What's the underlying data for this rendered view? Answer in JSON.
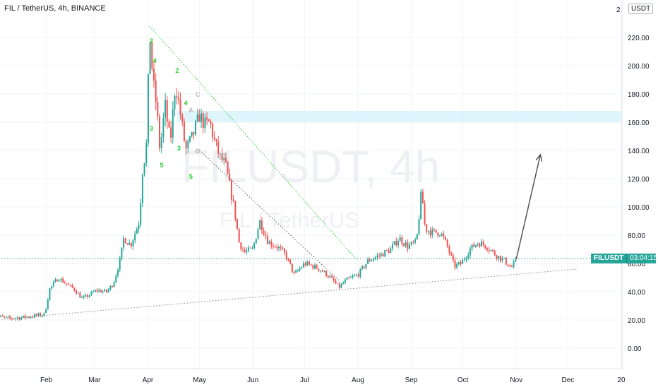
{
  "header": {
    "title": "FIL / TetherUS, 4h, BINANCE",
    "currency_badge": "USDT",
    "top_axis_label": "2"
  },
  "watermark": {
    "main": "FILUSDT, 4h",
    "sub": "FIL / TetherUS"
  },
  "price_tag": {
    "symbol": "FILUSDT",
    "countdown": "03:04:15",
    "value": 63.5,
    "color": "#26a69a"
  },
  "chart_data": {
    "type": "candlestick",
    "title": "FIL / TetherUS, 4h, BINANCE",
    "y_ticks": [
      "220.00",
      "200.00",
      "180.00",
      "160.00",
      "140.00",
      "120.00",
      "100.00",
      "80.00",
      "60.00",
      "40.00",
      "20.00",
      "0.00"
    ],
    "y_tick_values": [
      220,
      200,
      180,
      160,
      140,
      120,
      100,
      80,
      60,
      40,
      20,
      0
    ],
    "ylim": [
      -15,
      235
    ],
    "x_ticks": [
      "Feb",
      "Mar",
      "Apr",
      "May",
      "Jun",
      "Jul",
      "Aug",
      "Sep",
      "Oct",
      "Nov",
      "Dec",
      "20"
    ],
    "x_tick_dates": [
      "2021-02-01",
      "2021-03-01",
      "2021-04-01",
      "2021-05-01",
      "2021-06-01",
      "2021-07-01",
      "2021-08-01",
      "2021-09-01",
      "2021-10-01",
      "2021-11-01",
      "2021-12-01",
      "2022-01-01"
    ],
    "xlim": [
      "2021-01-01",
      "2022-01-01"
    ],
    "price_path": [
      [
        "2021-01-01",
        23
      ],
      [
        "2021-01-10",
        21
      ],
      [
        "2021-01-20",
        22
      ],
      [
        "2021-01-31",
        24
      ],
      [
        "2021-02-03",
        42
      ],
      [
        "2021-02-08",
        50
      ],
      [
        "2021-02-12",
        46
      ],
      [
        "2021-02-17",
        42
      ],
      [
        "2021-02-22",
        35
      ],
      [
        "2021-02-25",
        37
      ],
      [
        "2021-03-02",
        41
      ],
      [
        "2021-03-08",
        40
      ],
      [
        "2021-03-12",
        46
      ],
      [
        "2021-03-16",
        63
      ],
      [
        "2021-03-18",
        78
      ],
      [
        "2021-03-22",
        73
      ],
      [
        "2021-03-27",
        90
      ],
      [
        "2021-03-29",
        128
      ],
      [
        "2021-03-31",
        140
      ],
      [
        "2021-04-01",
        178
      ],
      [
        "2021-04-02",
        225
      ],
      [
        "2021-04-04",
        188
      ],
      [
        "2021-04-06",
        172
      ],
      [
        "2021-04-08",
        140
      ],
      [
        "2021-04-11",
        172
      ],
      [
        "2021-04-14",
        145
      ],
      [
        "2021-04-17",
        188
      ],
      [
        "2021-04-20",
        165
      ],
      [
        "2021-04-23",
        140
      ],
      [
        "2021-04-27",
        150
      ],
      [
        "2021-05-01",
        165
      ],
      [
        "2021-05-04",
        158
      ],
      [
        "2021-05-07",
        160
      ],
      [
        "2021-05-10",
        145
      ],
      [
        "2021-05-13",
        135
      ],
      [
        "2021-05-16",
        130
      ],
      [
        "2021-05-18",
        118
      ],
      [
        "2021-05-21",
        100
      ],
      [
        "2021-05-24",
        75
      ],
      [
        "2021-05-27",
        68
      ],
      [
        "2021-06-01",
        70
      ],
      [
        "2021-06-05",
        90
      ],
      [
        "2021-06-10",
        75
      ],
      [
        "2021-06-15",
        72
      ],
      [
        "2021-06-20",
        66
      ],
      [
        "2021-06-25",
        52
      ],
      [
        "2021-07-01",
        60
      ],
      [
        "2021-07-06",
        58
      ],
      [
        "2021-07-11",
        55
      ],
      [
        "2021-07-16",
        50
      ],
      [
        "2021-07-21",
        43
      ],
      [
        "2021-07-25",
        48
      ],
      [
        "2021-08-01",
        52
      ],
      [
        "2021-08-07",
        62
      ],
      [
        "2021-08-14",
        66
      ],
      [
        "2021-08-20",
        70
      ],
      [
        "2021-08-25",
        78
      ],
      [
        "2021-08-30",
        72
      ],
      [
        "2021-09-04",
        75
      ],
      [
        "2021-09-07",
        112
      ],
      [
        "2021-09-09",
        85
      ],
      [
        "2021-09-13",
        82
      ],
      [
        "2021-09-18",
        82
      ],
      [
        "2021-09-22",
        72
      ],
      [
        "2021-09-26",
        58
      ],
      [
        "2021-09-30",
        60
      ],
      [
        "2021-10-05",
        70
      ],
      [
        "2021-10-10",
        75
      ],
      [
        "2021-10-15",
        72
      ],
      [
        "2021-10-20",
        66
      ],
      [
        "2021-10-25",
        62
      ],
      [
        "2021-10-29",
        57
      ],
      [
        "2021-11-01",
        62
      ]
    ],
    "wave_labels": [
      {
        "text": "2",
        "date": "2021-04-03",
        "price": 216,
        "color": "#22cc22"
      },
      {
        "text": "4",
        "date": "2021-04-05",
        "price": 202,
        "color": "#22cc22"
      },
      {
        "text": "2",
        "date": "2021-04-18",
        "price": 195,
        "color": "#22cc22"
      },
      {
        "text": "4",
        "date": "2021-04-23",
        "price": 172,
        "color": "#22cc22"
      },
      {
        "text": "3",
        "date": "2021-04-03",
        "price": 154,
        "color": "#22cc22"
      },
      {
        "text": "3",
        "date": "2021-04-19",
        "price": 140,
        "color": "#22cc22"
      },
      {
        "text": "5",
        "date": "2021-04-09",
        "price": 128,
        "color": "#22cc22"
      },
      {
        "text": "5",
        "date": "2021-04-26",
        "price": 120,
        "color": "#22cc22"
      },
      {
        "text": "C",
        "date": "2021-04-30",
        "price": 178,
        "color": "#bbbbbb"
      },
      {
        "text": "A",
        "date": "2021-04-26",
        "price": 167,
        "color": "#bbbbbb"
      },
      {
        "text": "B",
        "date": "2021-04-30",
        "price": 138,
        "color": "#bbbbbb"
      }
    ],
    "resistance_zone": {
      "from": 160,
      "to": 168,
      "start": "2021-04-18",
      "color": "#d6f2fb"
    },
    "lines": [
      {
        "style": "dotted",
        "color": "#22cc22",
        "from": [
          "2021-04-02",
          228
        ],
        "to": [
          "2021-07-31",
          63
        ]
      },
      {
        "style": "dotted",
        "color": "#555555",
        "from": [
          "2021-05-01",
          140
        ],
        "to": [
          "2021-07-21",
          48
        ]
      },
      {
        "style": "dotted",
        "color": "#888888",
        "from": [
          "2021-01-01",
          20
        ],
        "to": [
          "2021-12-06",
          56
        ]
      },
      {
        "style": "dotted",
        "color": "#26a69a",
        "from": [
          "2021-01-01",
          63.5
        ],
        "to": [
          "2022-01-01",
          63.5
        ]
      },
      {
        "style": "solid-arrow",
        "color": "#555555",
        "from": [
          "2021-11-01",
          63
        ],
        "to": [
          "2021-11-15",
          137
        ]
      }
    ]
  }
}
